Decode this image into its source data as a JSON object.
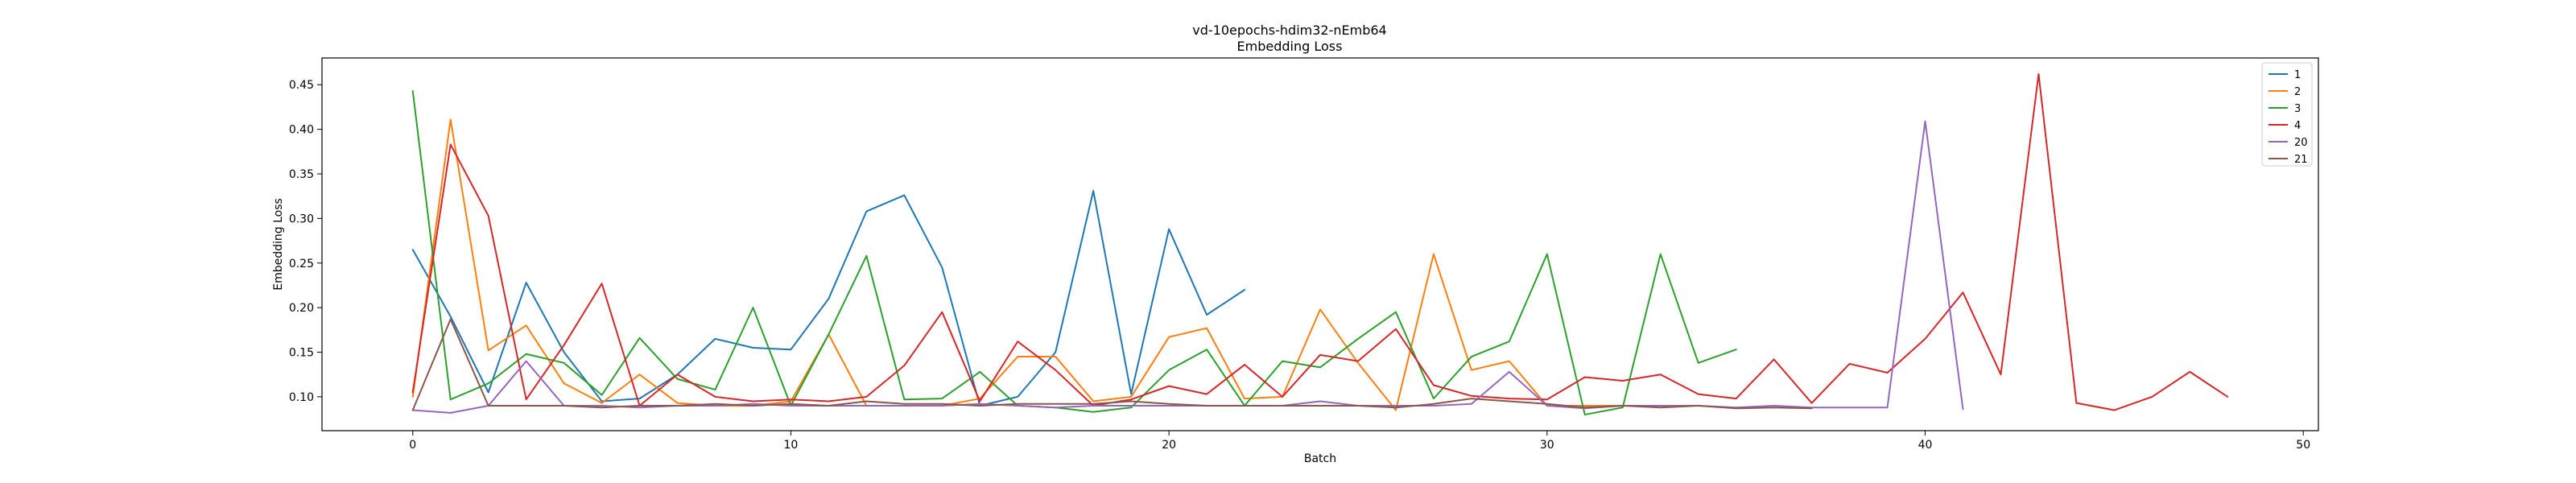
{
  "chart_data": {
    "type": "line",
    "title": "vd-10epochs-hdim32-nEmb64",
    "subtitle": "Embedding Loss",
    "xlabel": "Batch",
    "ylabel": "Embedding Loss",
    "xlim": [
      -2.4,
      50.4
    ],
    "ylim": [
      0.062,
      0.48
    ],
    "xticks": [
      0,
      10,
      20,
      30,
      40,
      50
    ],
    "xtick_labels": [
      "0",
      "10",
      "20",
      "30",
      "40",
      "50"
    ],
    "yticks": [
      0.1,
      0.15,
      0.2,
      0.25,
      0.3,
      0.35,
      0.4,
      0.45
    ],
    "ytick_labels": [
      "0.10",
      "0.15",
      "0.20",
      "0.25",
      "0.30",
      "0.35",
      "0.40",
      "0.45"
    ],
    "grid": false,
    "legend_position": "top-right",
    "series": [
      {
        "name": "1",
        "color": "#1f77b4",
        "x": [
          0,
          1,
          2,
          3,
          4,
          5,
          6,
          7,
          8,
          9,
          10,
          11,
          12,
          13,
          14,
          15,
          16,
          17,
          18,
          19,
          20,
          21,
          22
        ],
        "y": [
          0.265,
          0.19,
          0.105,
          0.228,
          0.15,
          0.095,
          0.098,
          0.125,
          0.165,
          0.155,
          0.153,
          0.21,
          0.308,
          0.326,
          0.245,
          0.09,
          0.1,
          0.15,
          0.331,
          0.103,
          0.288,
          0.192,
          0.22
        ]
      },
      {
        "name": "2",
        "color": "#ff7f0e",
        "x": [
          0,
          1,
          2,
          3,
          4,
          5,
          6,
          7,
          8,
          9,
          10,
          11,
          12,
          13,
          14,
          15,
          16,
          17,
          18,
          19,
          20,
          21,
          22,
          23,
          24,
          25,
          26,
          27,
          28,
          29,
          30,
          31,
          32
        ],
        "y": [
          0.1,
          0.411,
          0.152,
          0.18,
          0.115,
          0.093,
          0.125,
          0.093,
          0.09,
          0.09,
          0.095,
          0.17,
          0.09,
          0.09,
          0.09,
          0.098,
          0.145,
          0.145,
          0.095,
          0.1,
          0.167,
          0.177,
          0.098,
          0.1,
          0.198,
          0.138,
          0.085,
          0.26,
          0.13,
          0.14,
          0.09,
          0.09,
          0.09
        ]
      },
      {
        "name": "3",
        "color": "#2ca02c",
        "x": [
          0,
          1,
          2,
          3,
          4,
          5,
          6,
          7,
          8,
          9,
          10,
          11,
          12,
          13,
          14,
          15,
          16,
          17,
          18,
          19,
          20,
          21,
          22,
          23,
          24,
          25,
          26,
          27,
          28,
          29,
          30,
          31,
          32,
          33,
          34,
          35
        ],
        "y": [
          0.443,
          0.097,
          0.115,
          0.148,
          0.138,
          0.102,
          0.166,
          0.12,
          0.108,
          0.2,
          0.09,
          0.17,
          0.258,
          0.097,
          0.098,
          0.128,
          0.09,
          0.088,
          0.083,
          0.088,
          0.13,
          0.153,
          0.09,
          0.14,
          0.133,
          0.165,
          0.195,
          0.098,
          0.145,
          0.162,
          0.26,
          0.08,
          0.088,
          0.26,
          0.138,
          0.153
        ]
      },
      {
        "name": "4",
        "color": "#d62728",
        "x": [
          0,
          1,
          2,
          3,
          4,
          5,
          6,
          7,
          8,
          9,
          10,
          11,
          12,
          13,
          14,
          15,
          16,
          17,
          18,
          19,
          20,
          21,
          22,
          23,
          24,
          25,
          26,
          27,
          28,
          29,
          30,
          31,
          32,
          33,
          34,
          35,
          36,
          37,
          38,
          39,
          40,
          41,
          42,
          43,
          44,
          45,
          46,
          47,
          48
        ],
        "y": [
          0.105,
          0.383,
          0.303,
          0.097,
          0.158,
          0.227,
          0.09,
          0.125,
          0.1,
          0.095,
          0.097,
          0.095,
          0.1,
          0.135,
          0.195,
          0.095,
          0.162,
          0.13,
          0.09,
          0.097,
          0.112,
          0.103,
          0.136,
          0.1,
          0.147,
          0.14,
          0.176,
          0.113,
          0.101,
          0.098,
          0.097,
          0.122,
          0.118,
          0.125,
          0.103,
          0.098,
          0.142,
          0.093,
          0.137,
          0.127,
          0.165,
          0.217,
          0.125,
          0.462,
          0.093,
          0.085,
          0.1,
          0.128,
          0.1
        ]
      },
      {
        "name": "20",
        "color": "#9467bd",
        "x": [
          0,
          1,
          2,
          3,
          4,
          5,
          6,
          7,
          8,
          9,
          10,
          11,
          12,
          13,
          14,
          15,
          16,
          17,
          18,
          19,
          20,
          21,
          22,
          23,
          24,
          25,
          26,
          27,
          28,
          29,
          30,
          31,
          32,
          33,
          34,
          35,
          36,
          37,
          38,
          39,
          40,
          41
        ],
        "y": [
          0.085,
          0.082,
          0.09,
          0.14,
          0.09,
          0.09,
          0.088,
          0.09,
          0.09,
          0.092,
          0.09,
          0.09,
          0.09,
          0.09,
          0.09,
          0.092,
          0.09,
          0.088,
          0.09,
          0.09,
          0.09,
          0.09,
          0.09,
          0.09,
          0.095,
          0.09,
          0.09,
          0.09,
          0.092,
          0.128,
          0.09,
          0.087,
          0.09,
          0.09,
          0.09,
          0.088,
          0.09,
          0.088,
          0.088,
          0.088,
          0.409,
          0.086
        ]
      },
      {
        "name": "21",
        "color": "#8c564b",
        "x": [
          0,
          1,
          2,
          3,
          4,
          5,
          6,
          7,
          8,
          9,
          10,
          11,
          12,
          13,
          14,
          15,
          16,
          17,
          18,
          19,
          20,
          21,
          22,
          23,
          24,
          25,
          26,
          27,
          28,
          29,
          30,
          31,
          32,
          33,
          34,
          35,
          36,
          37
        ],
        "y": [
          0.085,
          0.187,
          0.09,
          0.09,
          0.09,
          0.088,
          0.09,
          0.09,
          0.092,
          0.09,
          0.092,
          0.09,
          0.095,
          0.092,
          0.092,
          0.09,
          0.092,
          0.092,
          0.092,
          0.095,
          0.092,
          0.09,
          0.09,
          0.09,
          0.09,
          0.09,
          0.088,
          0.092,
          0.098,
          0.095,
          0.092,
          0.088,
          0.09,
          0.088,
          0.09,
          0.087,
          0.088,
          0.087
        ]
      }
    ]
  }
}
